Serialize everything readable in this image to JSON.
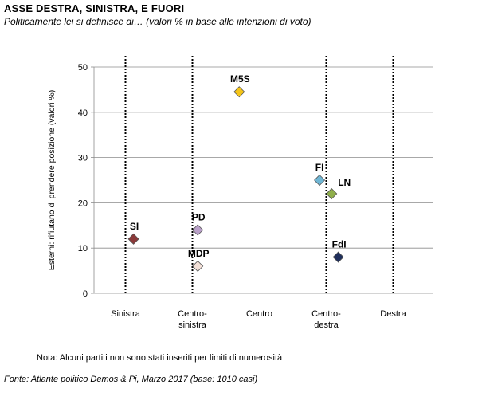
{
  "header": {
    "title": "ASSE DESTRA, SINISTRA, E FUORI",
    "subtitle": "Politicamente lei si definisce di… (valori % in base alle intenzioni di voto)"
  },
  "footer": {
    "note": "Nota: Alcuni partiti non sono stati inseriti per limiti di numerosità",
    "source": "Fonte: Atlante politico Demos & Pi, Marzo 2017 (base: 1010 casi)"
  },
  "chart_data": {
    "type": "scatter",
    "title": "ASSE DESTRA, SINISTRA, E FUORI",
    "subtitle": "Politicamente lei si definisce di… (valori % in base alle intenzioni di voto)",
    "xlabel": "",
    "ylabel": "Esterni: rifiutano di prendere posizione (valori %)",
    "xlim": [
      0,
      5
    ],
    "ylim": [
      0,
      50
    ],
    "yticks": [
      0,
      10,
      20,
      30,
      40,
      50
    ],
    "xcategories": [
      {
        "pos": 1,
        "label": [
          "Sinistra"
        ]
      },
      {
        "pos": 2,
        "label": [
          "Centro-",
          "sinistra"
        ]
      },
      {
        "pos": 3,
        "label": [
          "Centro"
        ]
      },
      {
        "pos": 4,
        "label": [
          "Centro-",
          "destra"
        ]
      },
      {
        "pos": 5,
        "label": [
          "Destra"
        ]
      }
    ],
    "dotted_lines_at": [
      1,
      2,
      4,
      5
    ],
    "grid": "horizontal",
    "points": [
      {
        "label": "SI",
        "x": 1.12,
        "y": 12,
        "color": "#8b3a3a"
      },
      {
        "label": "PD",
        "x": 2.08,
        "y": 14,
        "color": "#b9a0c8"
      },
      {
        "label": "MDP",
        "x": 2.08,
        "y": 6,
        "color": "#f3e0d8"
      },
      {
        "label": "M5S",
        "x": 2.7,
        "y": 44.5,
        "color": "#f5c518"
      },
      {
        "label": "FI",
        "x": 3.9,
        "y": 25,
        "color": "#6fb6d4"
      },
      {
        "label": "LN",
        "x": 4.08,
        "y": 22,
        "color": "#8fae4a"
      },
      {
        "label": "FdI",
        "x": 4.18,
        "y": 8,
        "color": "#1f2f5c"
      }
    ]
  }
}
